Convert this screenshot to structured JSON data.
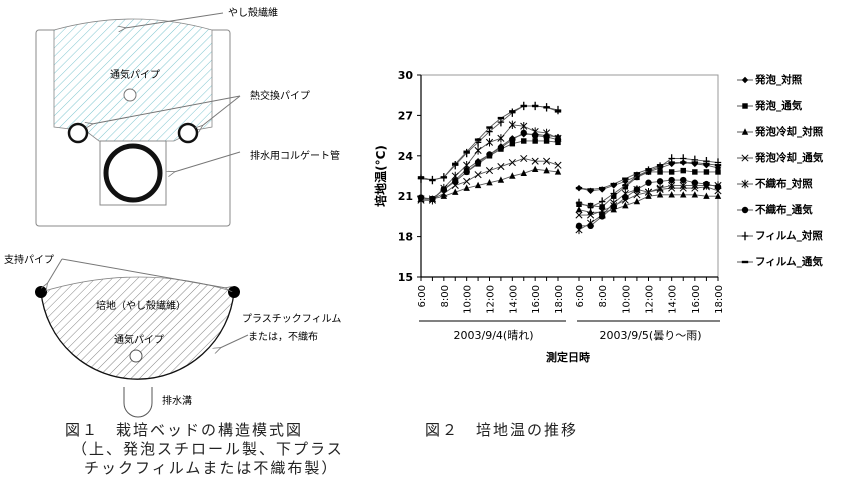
{
  "figure1": {
    "top_labels": {
      "coir": "やし殻繊維",
      "vent_pipe": "通気パイプ",
      "heat_pipe": "熱交換パイプ",
      "drain_pipe": "排水用コルゲート管"
    },
    "bottom_labels": {
      "support_pipe": "支持パイプ",
      "medium": "培地（やし殻繊維）",
      "vent_pipe": "通気パイプ",
      "film_line1": "プラスチックフィルム",
      "film_line2": "または，不織布",
      "drain": "排水溝"
    },
    "caption_line1": "図１　栽培ベッドの構造模式図",
    "caption_line2": "（上、発泡スチロール製、下プラス",
    "caption_line3": "チックフィルムまたは不織布製）",
    "hatch_color_top": "#7fc6d0"
  },
  "figure2": {
    "caption": "図２　培地温の推移"
  },
  "chart_data": {
    "type": "line",
    "ylabel": "培地温(°C)",
    "xlabel": "測定日時",
    "ylim": [
      15,
      30
    ],
    "yticks": [
      15,
      18,
      21,
      24,
      27,
      30
    ],
    "groups": [
      {
        "label": "2003/9/4(晴れ)",
        "x": [
          "6:00",
          "7:00",
          "8:00",
          "9:00",
          "10:00",
          "11:00",
          "12:00",
          "13:00",
          "14:00",
          "15:00",
          "16:00",
          "17:00",
          "18:00"
        ]
      },
      {
        "label": "2003/9/5(曇り～雨)",
        "x": [
          "6:00",
          "7:00",
          "8:00",
          "9:00",
          "10:00",
          "11:00",
          "12:00",
          "13:00",
          "14:00",
          "15:00",
          "16:00",
          "17:00",
          "18:00"
        ]
      }
    ],
    "xtick_labels": [
      "6:00",
      "8:00",
      "10:00",
      "12:00",
      "14:00",
      "16:00",
      "18:00"
    ],
    "legend_position": "right",
    "series": [
      {
        "name": "発泡_対照",
        "marker": "diamond",
        "day1": [
          20.8,
          20.8,
          21.5,
          22.2,
          23.0,
          23.6,
          24.1,
          24.7,
          25.3,
          25.6,
          25.6,
          25.5,
          25.4
        ],
        "day2": [
          21.6,
          21.4,
          21.5,
          21.8,
          22.1,
          22.5,
          22.8,
          23.1,
          23.4,
          23.5,
          23.4,
          23.3,
          23.1
        ]
      },
      {
        "name": "発泡_通気",
        "marker": "square",
        "day1": [
          20.8,
          20.8,
          21.5,
          22.1,
          22.8,
          23.4,
          24.0,
          24.5,
          24.9,
          25.1,
          25.1,
          25.1,
          25.0
        ],
        "day2": [
          20.4,
          20.3,
          20.2,
          21.0,
          21.7,
          22.4,
          22.8,
          22.8,
          22.8,
          22.9,
          22.8,
          22.8,
          22.8
        ]
      },
      {
        "name": "発泡冷却_対照",
        "marker": "triangle",
        "day1": [
          20.8,
          20.8,
          21.0,
          21.3,
          21.6,
          21.8,
          22.0,
          22.2,
          22.5,
          22.7,
          23.0,
          22.9,
          22.8
        ],
        "day2": [
          20.0,
          19.8,
          19.8,
          20.0,
          20.3,
          20.6,
          21.0,
          21.1,
          21.1,
          21.1,
          21.1,
          21.0,
          21.0
        ]
      },
      {
        "name": "発泡冷却_通気",
        "marker": "x",
        "day1": [
          20.8,
          20.8,
          21.2,
          21.8,
          22.1,
          22.6,
          22.9,
          23.2,
          23.5,
          23.8,
          23.6,
          23.6,
          23.3
        ],
        "day2": [
          19.6,
          19.6,
          19.9,
          20.3,
          20.7,
          21.1,
          21.3,
          21.5,
          21.6,
          21.6,
          21.6,
          21.7,
          21.4
        ]
      },
      {
        "name": "不織布_対照",
        "marker": "star",
        "day1": [
          20.7,
          20.7,
          21.6,
          22.5,
          23.3,
          24.4,
          25.0,
          25.3,
          26.3,
          26.2,
          25.8,
          25.7,
          25.3
        ],
        "day2": [
          18.5,
          19.0,
          19.6,
          20.5,
          21.2,
          21.5,
          21.3,
          21.6,
          21.8,
          21.8,
          21.8,
          21.8,
          21.8
        ]
      },
      {
        "name": "不織布_通気",
        "marker": "circle",
        "day1": [
          20.9,
          20.8,
          21.5,
          22.1,
          22.8,
          23.5,
          24.1,
          24.6,
          25.2,
          25.7,
          25.5,
          25.4,
          25.2
        ],
        "day2": [
          18.8,
          18.8,
          19.5,
          20.2,
          20.9,
          21.5,
          22.0,
          22.1,
          22.2,
          22.2,
          22.0,
          21.9,
          21.7
        ]
      },
      {
        "name": "フィルム_対照",
        "marker": "plus",
        "day1": [
          22.3,
          22.2,
          22.4,
          23.3,
          24.2,
          25.0,
          25.8,
          26.5,
          27.2,
          27.7,
          27.7,
          27.6,
          27.4
        ],
        "day2": [
          20.5,
          20.2,
          20.6,
          21.2,
          21.8,
          22.5,
          22.9,
          23.2,
          23.8,
          23.8,
          23.7,
          23.6,
          23.5
        ]
      },
      {
        "name": "フィルム_通気",
        "marker": "dash",
        "day1": [
          22.4,
          22.2,
          22.4,
          23.4,
          24.3,
          25.2,
          26.1,
          26.8,
          27.3,
          27.7,
          27.7,
          27.6,
          27.3
        ],
        "day2": [
          21.6,
          21.5,
          21.6,
          21.9,
          22.3,
          22.7,
          23.0,
          23.3,
          23.5,
          23.5,
          23.5,
          23.4,
          23.3
        ]
      }
    ]
  }
}
